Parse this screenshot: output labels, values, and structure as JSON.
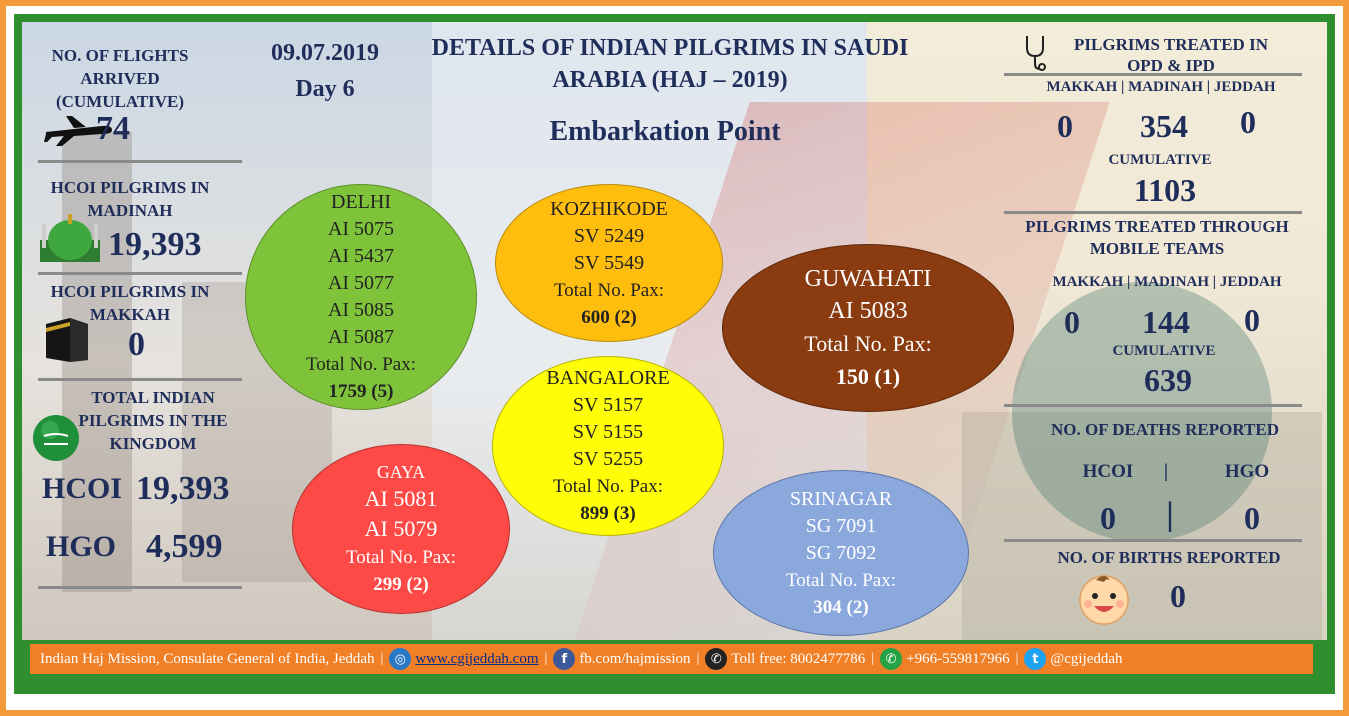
{
  "header": {
    "date": "09.07.2019",
    "day": "Day 6",
    "title": "DETAILS OF INDIAN PILGRIMS IN SAUDI ARABIA (HAJ – 2019)",
    "subtitle": "Embarkation Point"
  },
  "left": {
    "flights_label": "NO. OF FLIGHTS ARRIVED (CUMULATIVE)",
    "flights_value": "74",
    "madinah_label": "HCOI PILGRIMS IN MADINAH",
    "madinah_value": "19,393",
    "makkah_label": "HCOI PILGRIMS IN MAKKAH",
    "makkah_value": "0",
    "total_label": "TOTAL INDIAN PILGRIMS IN THE KINGDOM",
    "hcoi_key": "HCOI",
    "hcoi_value": "19,393",
    "hgo_key": "HGO",
    "hgo_value": "4,599"
  },
  "embarkation": {
    "delhi": {
      "name": "DELHI",
      "flights": [
        "AI 5075",
        "AI 5437",
        "AI 5077",
        "AI 5085",
        "AI 5087"
      ],
      "total_label": "Total No. Pax:",
      "pax": "1759 (5)",
      "color": "#7fc33b"
    },
    "kozhikode": {
      "name": "KOZHIKODE",
      "flights": [
        "SV 5249",
        "SV 5549"
      ],
      "total_label": "Total No. Pax:",
      "pax": "600 (2)",
      "color": "#ffbe0d"
    },
    "bangalore": {
      "name": "BANGALORE",
      "flights": [
        "SV 5157",
        "SV 5155",
        "SV 5255"
      ],
      "total_label": "Total No. Pax:",
      "pax": "899 (3)",
      "color": "#fffd07"
    },
    "gaya": {
      "name": "GAYA",
      "flights": [
        "AI 5081",
        "AI 5079"
      ],
      "total_label": "Total No. Pax:",
      "pax": "299 (2)",
      "color": "#fd4a46"
    },
    "guwahati": {
      "name": "GUWAHATI",
      "flights": [
        "AI 5083"
      ],
      "total_label": "Total No. Pax:",
      "pax": "150 (1)",
      "color": "#8a3b10"
    },
    "srinagar": {
      "name": "SRINAGAR",
      "flights": [
        "SG 7091",
        "SG 7092"
      ],
      "total_label": "Total No. Pax:",
      "pax": "304 (2)",
      "color": "#8aa8dc"
    }
  },
  "right": {
    "opd_title": "PILGRIMS TREATED IN OPD & IPD",
    "locations": "MAKKAH | MADINAH | JEDDAH",
    "opd_makkah": "0",
    "opd_madinah": "354",
    "opd_jeddah": "0",
    "cumulative_label": "CUMULATIVE",
    "opd_cumulative": "1103",
    "mobile_title": "PILGRIMS TREATED THROUGH MOBILE TEAMS",
    "mobile_makkah": "0",
    "mobile_madinah": "144",
    "mobile_jeddah": "0",
    "mobile_cumulative": "639",
    "deaths_title": "NO. OF DEATHS REPORTED",
    "deaths_hcoi_label": "HCOI",
    "deaths_sep": "|",
    "deaths_hgo_label": "HGO",
    "deaths_hcoi": "0",
    "deaths_hgo": "0",
    "births_title": "NO. OF BIRTHS REPORTED",
    "births_value": "0"
  },
  "footer": {
    "org": "Indian Haj Mission, Consulate General of India, Jeddah",
    "website": "www.cgijeddah.com",
    "facebook": "fb.com/hajmission",
    "tollfree": "Toll free: 8002477786",
    "whatsapp": "+966-559817966",
    "twitter": "@cgijeddah",
    "sep": "|"
  },
  "icons": [
    "airplane-icon",
    "mosque-icon",
    "kaaba-icon",
    "saudi-flag-icon",
    "stethoscope-icon",
    "baby-icon",
    "globe-icon",
    "facebook-icon",
    "phone-icon",
    "whatsapp-icon",
    "twitter-icon"
  ],
  "colors": {
    "frame_orange": "#f39a3a",
    "frame_green": "#2f8f2f",
    "text_navy": "#1b2a5c",
    "footer_bg": "#f07f26"
  }
}
